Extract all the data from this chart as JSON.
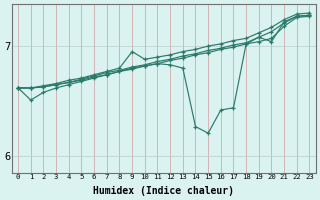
{
  "xlabel": "Humidex (Indice chaleur)",
  "bg_color": "#daf2f0",
  "line_color": "#2a7a6a",
  "xmin": -0.5,
  "xmax": 23.5,
  "ymin": 5.85,
  "ymax": 7.38,
  "yticks": [
    6,
    7
  ],
  "xticks": [
    0,
    1,
    2,
    3,
    4,
    5,
    6,
    7,
    8,
    9,
    10,
    11,
    12,
    13,
    14,
    15,
    16,
    17,
    18,
    19,
    20,
    21,
    22,
    23
  ],
  "series": [
    {
      "y": [
        6.62,
        6.62,
        6.63,
        6.65,
        6.67,
        6.69,
        6.72,
        6.74,
        6.77,
        6.79,
        6.82,
        6.84,
        6.87,
        6.89,
        6.92,
        6.94,
        6.97,
        6.99,
        7.02,
        7.04,
        7.07,
        7.18,
        7.26,
        7.27
      ]
    },
    {
      "y": [
        6.62,
        6.62,
        6.63,
        6.65,
        6.67,
        6.7,
        6.73,
        6.76,
        6.78,
        6.81,
        6.83,
        6.86,
        6.88,
        6.91,
        6.93,
        6.96,
        6.98,
        7.01,
        7.03,
        7.08,
        7.13,
        7.21,
        7.27,
        7.28
      ]
    },
    {
      "y": [
        6.62,
        6.62,
        6.64,
        6.66,
        6.69,
        6.71,
        6.74,
        6.77,
        6.8,
        6.95,
        6.88,
        6.9,
        6.92,
        6.95,
        6.97,
        7.0,
        7.02,
        7.05,
        7.07,
        7.12,
        7.17,
        7.24,
        7.29,
        7.3
      ]
    },
    {
      "y": [
        6.62,
        6.51,
        6.58,
        6.62,
        6.65,
        6.68,
        6.71,
        6.74,
        6.77,
        6.8,
        6.82,
        6.84,
        6.83,
        6.8,
        6.27,
        6.21,
        6.42,
        6.44,
        7.02,
        7.08,
        7.04,
        7.22,
        7.27,
        7.28
      ]
    }
  ]
}
